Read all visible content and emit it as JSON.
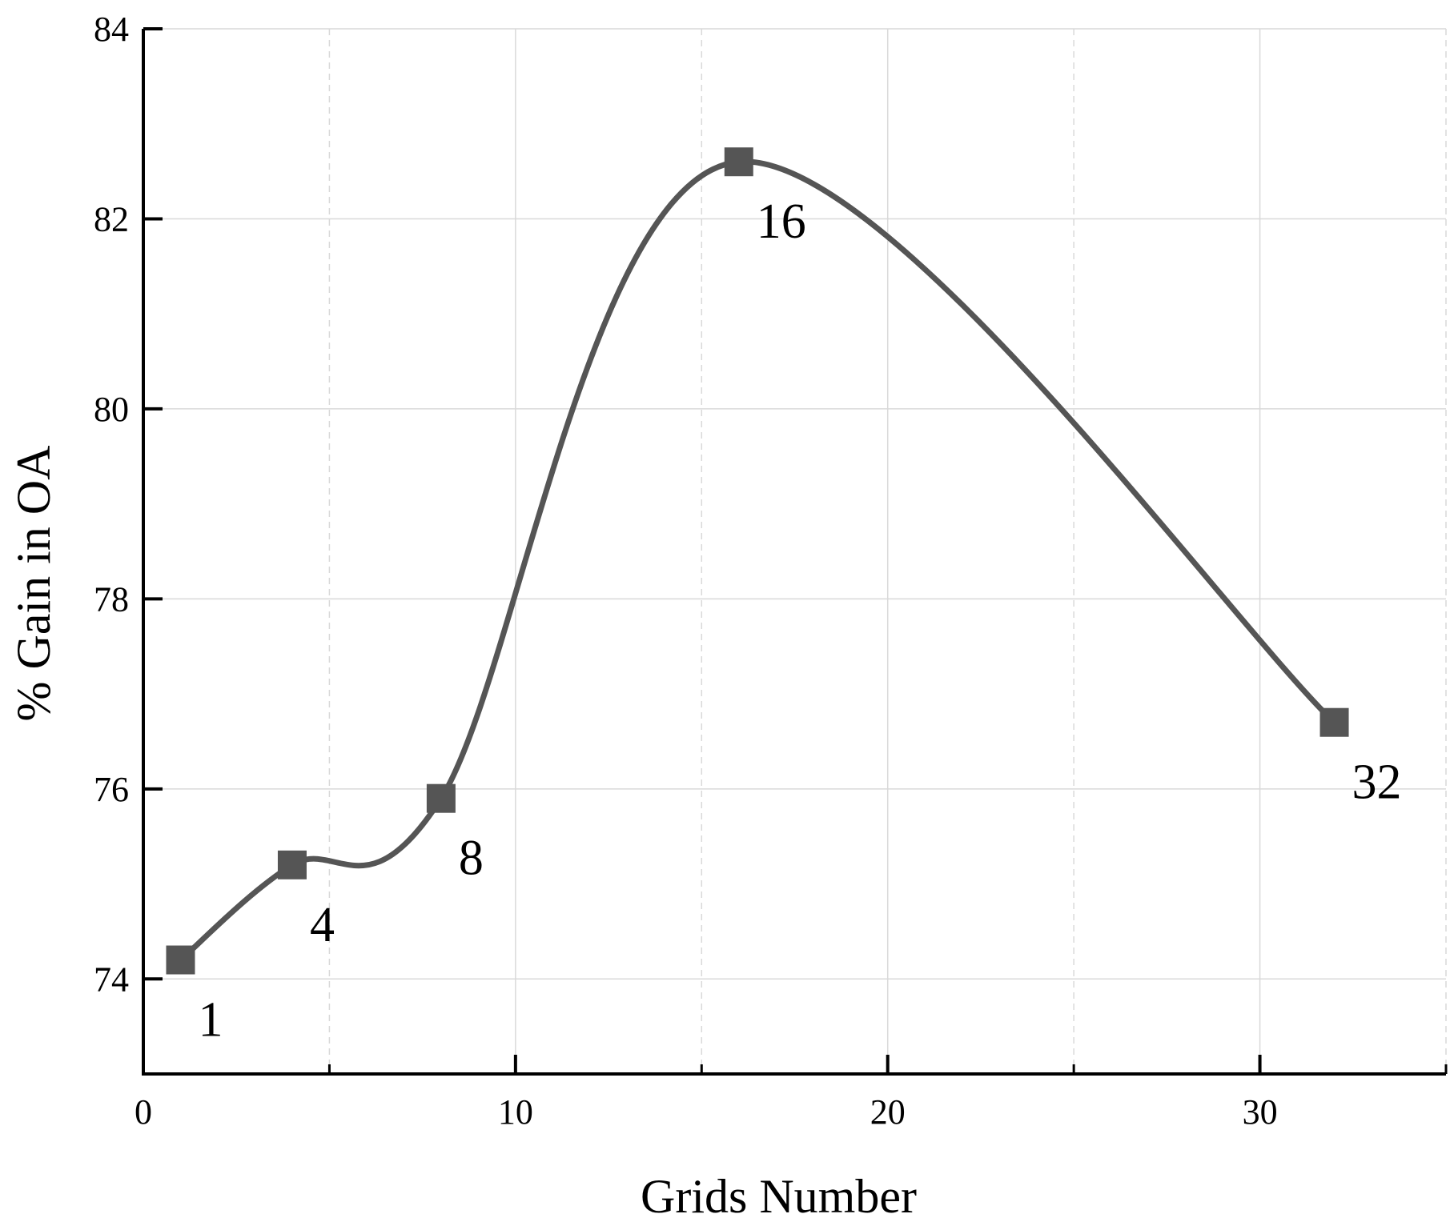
{
  "chart_data": {
    "type": "line",
    "title": "",
    "xlabel": "Grids Number",
    "ylabel": "% Gain in OA",
    "xlim": [
      0,
      35
    ],
    "ylim": [
      73,
      84
    ],
    "x_ticks": [
      0,
      10,
      20,
      30
    ],
    "x_tick_labels": [
      "0",
      "10",
      "20",
      "30"
    ],
    "x_minor_ticks": [
      5,
      15,
      25,
      35
    ],
    "y_ticks": [
      74,
      76,
      78,
      80,
      82,
      84
    ],
    "y_tick_labels": [
      "74",
      "76",
      "78",
      "80",
      "82",
      "84"
    ],
    "grid": true,
    "line_style": "smooth spline",
    "marker": "square",
    "colors": {
      "line": "#555555",
      "grid": "#d9d9d9",
      "axis": "#000000"
    },
    "series": [
      {
        "x": [
          1,
          4,
          8,
          16,
          32
        ],
        "y": [
          74.2,
          75.2,
          75.9,
          82.6,
          76.7
        ],
        "point_labels": [
          "1",
          "4",
          "8",
          "16",
          "32"
        ]
      }
    ]
  }
}
